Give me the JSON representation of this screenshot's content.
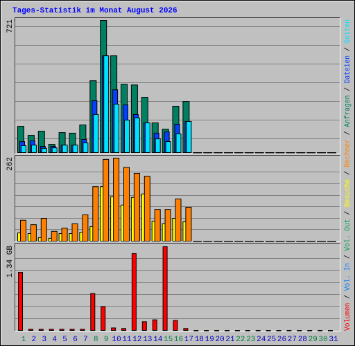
{
  "chart_data": [
    {
      "type": "bar",
      "title": "Tages-Statistik im Monat August 2026",
      "ylim": [
        0,
        721
      ],
      "yticks": [
        721
      ],
      "series": [
        {
          "name": "Anfragen",
          "color": "#008060",
          "values": [
            143,
            94,
            117,
            45,
            109,
            106,
            151,
            392,
            721,
            528,
            373,
            369,
            302,
            162,
            128,
            253,
            279,
            0,
            0,
            0,
            0,
            0,
            0,
            0,
            0,
            0,
            0,
            0,
            0,
            0,
            0
          ]
        },
        {
          "name": "Dateien",
          "color": "#0040ff",
          "values": [
            60,
            64,
            34,
            34,
            41,
            41,
            72,
            283,
            528,
            343,
            260,
            208,
            162,
            106,
            113,
            155,
            170,
            0,
            0,
            0,
            0,
            0,
            0,
            0,
            0,
            0,
            0,
            0,
            0,
            0,
            0
          ]
        },
        {
          "name": "Seiten",
          "color": "#00e0ff",
          "values": [
            38,
            41,
            23,
            26,
            41,
            41,
            53,
            208,
            528,
            264,
            177,
            189,
            162,
            75,
            60,
            102,
            170,
            0,
            0,
            0,
            0,
            0,
            0,
            0,
            0,
            0,
            0,
            0,
            0,
            0,
            0
          ]
        }
      ]
    },
    {
      "type": "bar",
      "ylim": [
        0,
        262
      ],
      "yticks": [
        262
      ],
      "series": [
        {
          "name": "Besuche",
          "color": "#ffff00",
          "values": [
            26,
            24,
            11,
            9,
            24,
            24,
            28,
            46,
            172,
            140,
            114,
            138,
            149,
            63,
            55,
            72,
            61,
            0,
            0,
            0,
            0,
            0,
            0,
            0,
            0,
            0,
            0,
            0,
            0,
            0,
            0
          ]
        },
        {
          "name": "Rechner",
          "color": "#ff8000",
          "values": [
            66,
            52,
            72,
            31,
            41,
            55,
            83,
            172,
            258,
            262,
            233,
            214,
            205,
            100,
            100,
            133,
            107,
            0,
            0,
            0,
            0,
            0,
            0,
            0,
            0,
            0,
            0,
            0,
            0,
            0,
            0
          ]
        }
      ]
    },
    {
      "type": "bar",
      "ylim": [
        0,
        1.34
      ],
      "yticks": [
        {
          "value": 1.34,
          "label": "1.34 GB"
        }
      ],
      "legend_separator": " / ",
      "categories": [
        "1",
        "2",
        "3",
        "4",
        "5",
        "6",
        "7",
        "8",
        "9",
        "10",
        "11",
        "12",
        "13",
        "14",
        "15",
        "16",
        "17",
        "18",
        "19",
        "20",
        "21",
        "22",
        "23",
        "24",
        "25",
        "26",
        "27",
        "28",
        "29",
        "30",
        "31"
      ],
      "category_colors": [
        "#008040",
        "#0000c0",
        "#0000c0",
        "#0000c0",
        "#0000c0",
        "#0000c0",
        "#0000c0",
        "#008040",
        "#008040",
        "#0000c0",
        "#0000c0",
        "#0000c0",
        "#0000c0",
        "#0000c0",
        "#008040",
        "#008040",
        "#0000c0",
        "#0000c0",
        "#0000c0",
        "#0000c0",
        "#0000c0",
        "#008040",
        "#008040",
        "#0000c0",
        "#0000c0",
        "#0000c0",
        "#0000c0",
        "#0000c0",
        "#008040",
        "#008040",
        "#0000c0"
      ],
      "series": [
        {
          "name": "Volumen",
          "color": "#ff0000",
          "values": [
            0.93,
            0.02,
            0.02,
            0.02,
            0.02,
            0.02,
            0.02,
            0.59,
            0.38,
            0.04,
            0.03,
            1.23,
            0.14,
            0.17,
            1.34,
            0.16,
            0.03,
            0,
            0,
            0,
            0,
            0,
            0,
            0,
            0,
            0,
            0,
            0,
            0,
            0,
            0
          ]
        },
        {
          "name": "Vol. In",
          "color": "#0080ff"
        },
        {
          "name": "Vol. Out",
          "color": "#00a050"
        }
      ]
    }
  ]
}
